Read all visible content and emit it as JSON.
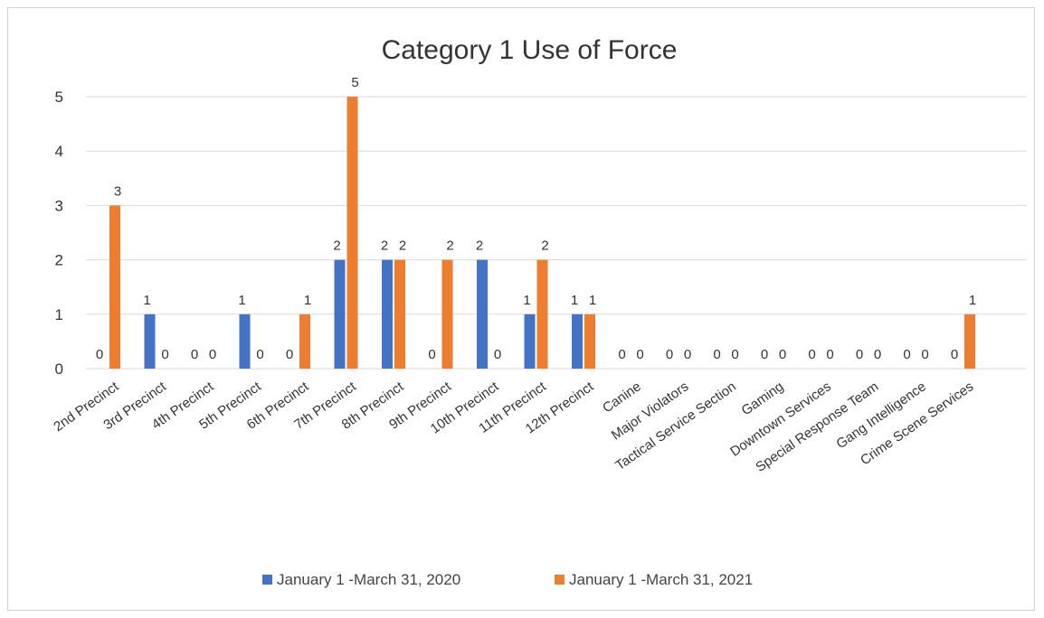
{
  "chart_data": {
    "type": "bar",
    "title": "Category 1 Use of Force",
    "xlabel": "",
    "ylabel": "",
    "ylim": [
      0,
      5
    ],
    "yticks": [
      "0",
      "1",
      "2",
      "3",
      "4",
      "5"
    ],
    "grid": true,
    "legend_position": "bottom",
    "categories": [
      "2nd Precinct",
      "3rd Precinct",
      "4th Precinct",
      "5th Precinct",
      "6th Precinct",
      "7th Precinct",
      "8th Precinct",
      "9th Precinct",
      "10th Precinct",
      "11th Precinct",
      "12th Precinct",
      "Canine",
      "Major Violators",
      "Tactical Service Section",
      "Gaming",
      "Downtown Services",
      "Special Response Team",
      "Gang Intelligence",
      "Crime Scene Services"
    ],
    "series": [
      {
        "name": "January 1 -March 31, 2020",
        "color": "#4472c4",
        "values": [
          0,
          1,
          0,
          1,
          0,
          2,
          2,
          0,
          2,
          1,
          1,
          0,
          0,
          0,
          0,
          0,
          0,
          0,
          0
        ]
      },
      {
        "name": "January 1 -March 31, 2021",
        "color": "#ed7d31",
        "values": [
          3,
          0,
          0,
          0,
          1,
          5,
          2,
          2,
          0,
          2,
          1,
          0,
          0,
          0,
          0,
          0,
          0,
          0,
          1
        ]
      }
    ]
  }
}
